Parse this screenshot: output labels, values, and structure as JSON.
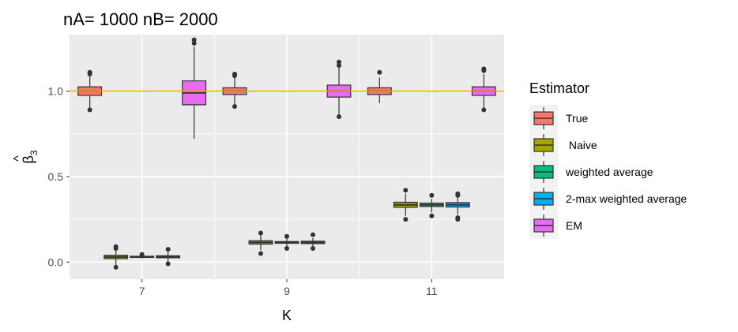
{
  "chart_data": {
    "type": "box",
    "title": "nA= 1000 nB= 2000",
    "xlabel": "K",
    "ylabel": "β3",
    "ylabel_hat": "^",
    "ylabel_base": "β",
    "ylabel_sub": "3",
    "categories": [
      "7",
      "9",
      "11"
    ],
    "yticks": [
      0.0,
      0.5,
      1.0
    ],
    "ytick_labels": [
      "0.0",
      "0.5",
      "1.0"
    ],
    "ylim": [
      -0.1,
      1.33
    ],
    "reference_line": {
      "y": 1.0,
      "color": "#FFA500"
    },
    "legend": {
      "title": "Estimator",
      "position": "right",
      "entries": [
        "True",
        " Naive",
        "weighted average",
        "2-max weighted average",
        "EM"
      ]
    },
    "series": [
      {
        "name": "True",
        "color": "#F8766D",
        "boxes": [
          {
            "category": "7",
            "min": 0.9,
            "q1": 0.975,
            "median": 1.0,
            "q3": 1.025,
            "max": 1.09,
            "outliers": [
              0.89,
              1.1,
              1.11
            ]
          },
          {
            "category": "9",
            "min": 0.92,
            "q1": 0.98,
            "median": 1.0,
            "q3": 1.02,
            "max": 1.08,
            "outliers": [
              0.91,
              1.09,
              1.1
            ]
          },
          {
            "category": "11",
            "min": 0.93,
            "q1": 0.98,
            "median": 1.0,
            "q3": 1.02,
            "max": 1.08,
            "outliers": [
              1.11
            ]
          }
        ]
      },
      {
        "name": " Naive",
        "color": "#A3A500",
        "boxes": [
          {
            "category": "7",
            "min": -0.02,
            "q1": 0.02,
            "median": 0.03,
            "q3": 0.04,
            "max": 0.07,
            "outliers": [
              -0.03,
              0.08,
              0.09
            ]
          },
          {
            "category": "9",
            "min": 0.07,
            "q1": 0.105,
            "median": 0.115,
            "q3": 0.125,
            "max": 0.16,
            "outliers": [
              0.05,
              0.17
            ]
          },
          {
            "category": "11",
            "min": 0.27,
            "q1": 0.32,
            "median": 0.335,
            "q3": 0.35,
            "max": 0.4,
            "outliers": [
              0.25,
              0.42
            ]
          }
        ]
      },
      {
        "name": "weighted average",
        "color": "#00BF7D",
        "boxes": [
          {
            "category": "7",
            "min": 0.02,
            "q1": 0.027,
            "median": 0.03,
            "q3": 0.034,
            "max": 0.04,
            "outliers": [
              0.045
            ]
          },
          {
            "category": "9",
            "min": 0.09,
            "q1": 0.11,
            "median": 0.115,
            "q3": 0.12,
            "max": 0.14,
            "outliers": [
              0.08,
              0.15
            ]
          },
          {
            "category": "11",
            "min": 0.29,
            "q1": 0.325,
            "median": 0.335,
            "q3": 0.345,
            "max": 0.37,
            "outliers": [
              0.27,
              0.39
            ]
          }
        ]
      },
      {
        "name": "2-max weighted average",
        "color": "#00B0F6",
        "boxes": [
          {
            "category": "7",
            "min": 0.0,
            "q1": 0.025,
            "median": 0.03,
            "q3": 0.037,
            "max": 0.065,
            "outliers": [
              -0.01,
              0.075
            ]
          },
          {
            "category": "9",
            "min": 0.09,
            "q1": 0.108,
            "median": 0.115,
            "q3": 0.122,
            "max": 0.14,
            "outliers": [
              0.08,
              0.16
            ]
          },
          {
            "category": "11",
            "min": 0.28,
            "q1": 0.322,
            "median": 0.335,
            "q3": 0.348,
            "max": 0.38,
            "outliers": [
              0.25,
              0.26,
              0.39,
              0.4
            ]
          }
        ]
      },
      {
        "name": "EM",
        "color": "#E76BF3",
        "boxes": [
          {
            "category": "7",
            "min": 0.72,
            "q1": 0.92,
            "median": 0.99,
            "q3": 1.06,
            "max": 1.26,
            "outliers": [
              1.28,
              1.3
            ]
          },
          {
            "category": "9",
            "min": 0.86,
            "q1": 0.965,
            "median": 1.0,
            "q3": 1.035,
            "max": 1.14,
            "outliers": [
              0.85,
              1.15,
              1.17
            ]
          },
          {
            "category": "11",
            "min": 0.9,
            "q1": 0.975,
            "median": 1.0,
            "q3": 1.025,
            "max": 1.1,
            "outliers": [
              0.89,
              1.12,
              1.13
            ]
          }
        ]
      }
    ]
  }
}
